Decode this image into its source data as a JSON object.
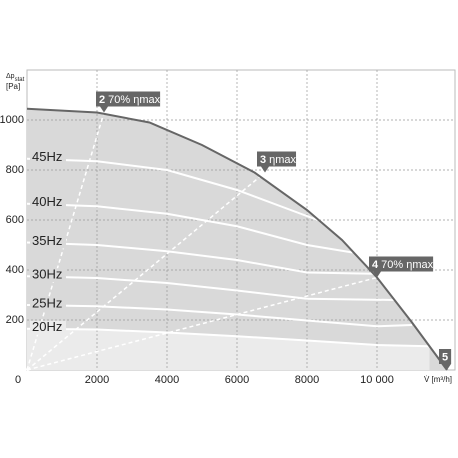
{
  "chart_data": {
    "type": "line",
    "y_label": "Δp",
    "y_label_sub": "stat",
    "y_unit": "[Pa]",
    "x_label": "V̇ [m³/h]",
    "xlim": [
      0,
      12000
    ],
    "ylim": [
      0,
      1200
    ],
    "xticks": [
      0,
      2000,
      4000,
      6000,
      8000,
      {
        "value": 10000,
        "label": "10 000"
      }
    ],
    "yticks": [
      200,
      400,
      600,
      800,
      1000
    ],
    "grid": true,
    "boundary": {
      "color": "#666666",
      "x": [
        0,
        2000,
        3500,
        5000,
        6500,
        8000,
        9000,
        10000,
        11000,
        12000
      ],
      "values": [
        1045,
        1030,
        990,
        900,
        790,
        640,
        520,
        370,
        190,
        0
      ]
    },
    "series": [
      {
        "name": "45Hz",
        "color": "#ffffff",
        "x": [
          0,
          2000,
          4000,
          6000,
          8300
        ],
        "values": [
          845,
          835,
          800,
          720,
          600
        ]
      },
      {
        "name": "40Hz",
        "color": "#ffffff",
        "x": [
          0,
          2000,
          4000,
          6000,
          8000,
          9300
        ],
        "values": [
          665,
          655,
          625,
          575,
          500,
          470
        ]
      },
      {
        "name": "35Hz",
        "color": "#ffffff",
        "x": [
          0,
          2000,
          4000,
          6000,
          8000,
          9900
        ],
        "values": [
          510,
          500,
          475,
          440,
          390,
          385
        ]
      },
      {
        "name": "30Hz",
        "color": "#ffffff",
        "x": [
          0,
          2000,
          4000,
          6000,
          8000,
          10500
        ],
        "values": [
          375,
          368,
          348,
          318,
          285,
          280
        ]
      },
      {
        "name": "25Hz",
        "color": "#ffffff",
        "x": [
          0,
          2000,
          4000,
          6000,
          8000,
          10000,
          11000
        ],
        "values": [
          260,
          255,
          242,
          222,
          198,
          175,
          180
        ]
      },
      {
        "name": "20Hz",
        "color": "#ffffff",
        "x": [
          0,
          2000,
          4000,
          6000,
          8000,
          10000,
          11500
        ],
        "values": [
          165,
          162,
          150,
          135,
          118,
          100,
          95
        ]
      }
    ],
    "efficiency_lines": [
      {
        "x": [
          0,
          2200
        ],
        "values": [
          0,
          1030
        ]
      },
      {
        "x": [
          0,
          6800
        ],
        "values": [
          0,
          790
        ]
      },
      {
        "x": [
          0,
          10000
        ],
        "values": [
          0,
          370
        ]
      }
    ],
    "markers": [
      {
        "number": "2",
        "text": "70% ηmax",
        "x": 2200,
        "y": 1030
      },
      {
        "number": "3",
        "text": "ηmax",
        "x": 6800,
        "y": 790
      },
      {
        "number": "4",
        "text": "70% ηmax",
        "x": 10000,
        "y": 370
      },
      {
        "number": "5",
        "x": 12000,
        "y": 0
      }
    ]
  }
}
